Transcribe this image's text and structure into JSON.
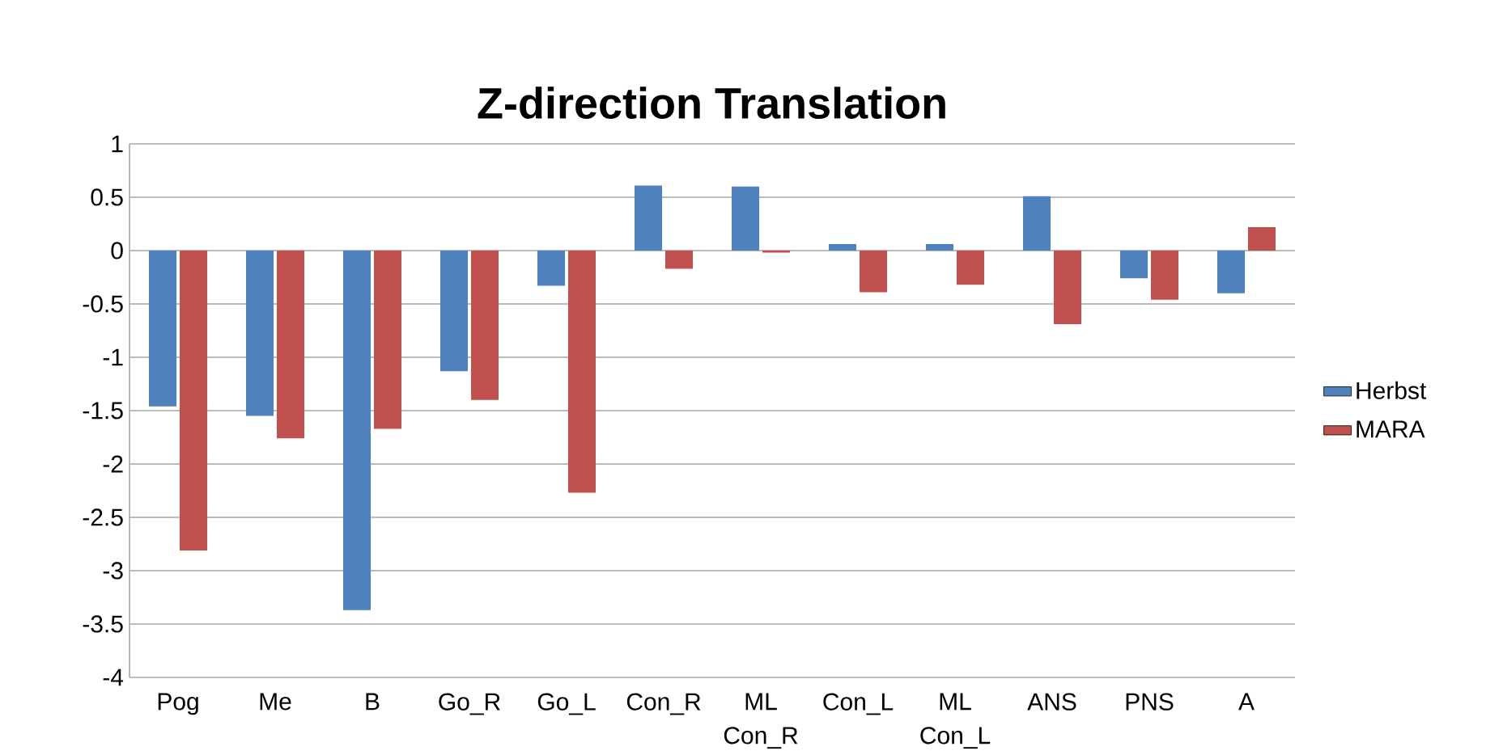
{
  "chart_data": {
    "type": "bar",
    "title": "Z-direction Translation",
    "categories": [
      "Pog",
      "Me",
      "B",
      "Go_R",
      "Go_L",
      "Con_R",
      "ML Con_R",
      "Con_L",
      "ML Con_L",
      "ANS",
      "PNS",
      "A"
    ],
    "series": [
      {
        "name": "Herbst",
        "color": "#4f81bd",
        "values": [
          -1.46,
          -1.55,
          -3.37,
          -1.13,
          -0.33,
          0.61,
          0.6,
          0.06,
          0.06,
          0.51,
          -0.26,
          -0.4
        ]
      },
      {
        "name": "MARA",
        "color": "#c0504d",
        "values": [
          -2.81,
          -1.76,
          -1.67,
          -1.4,
          -2.27,
          -0.17,
          -0.02,
          -0.39,
          -0.32,
          -0.69,
          -0.46,
          0.22
        ]
      }
    ],
    "ylim": [
      -4,
      1
    ],
    "yticks": [
      -4,
      -3.5,
      -3,
      -2.5,
      -2,
      -1.5,
      -1,
      -0.5,
      0,
      0.5,
      1
    ],
    "grid": "y",
    "legend": "right"
  }
}
